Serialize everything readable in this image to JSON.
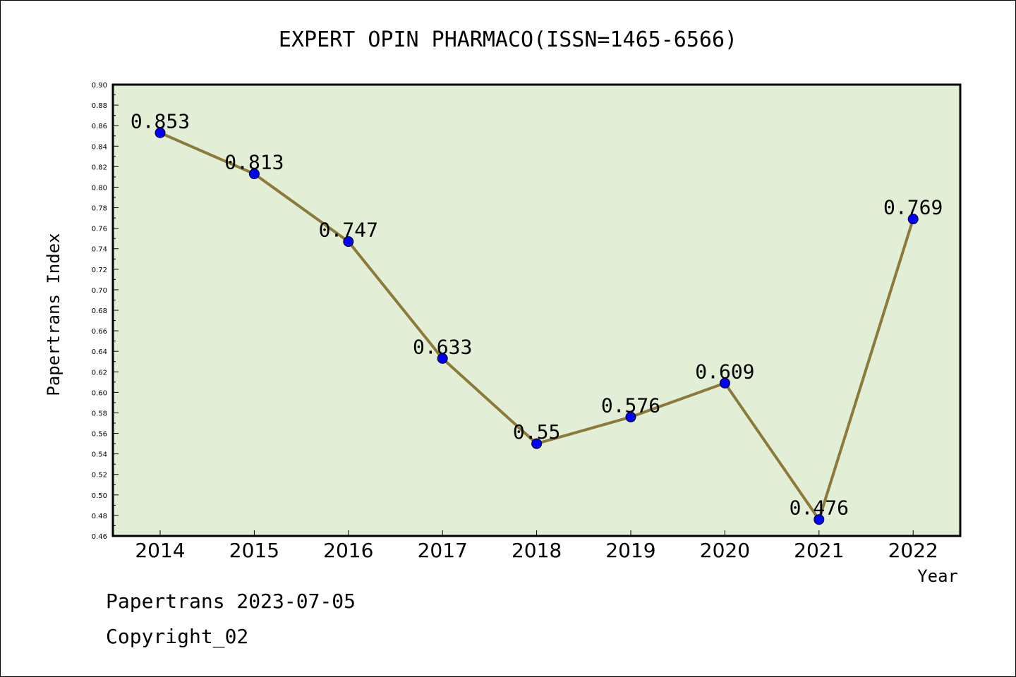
{
  "chart_data": {
    "type": "line",
    "title": "EXPERT OPIN PHARMACO(ISSN=1465-6566)",
    "xlabel": "Year",
    "ylabel": "Papertrans Index",
    "categories": [
      "2014",
      "2015",
      "2016",
      "2017",
      "2018",
      "2019",
      "2020",
      "2021",
      "2022"
    ],
    "values": [
      0.853,
      0.813,
      0.747,
      0.633,
      0.55,
      0.576,
      0.609,
      0.476,
      0.769
    ],
    "data_labels": [
      "0.853",
      "0.813",
      "0.747",
      "0.633",
      "0.55",
      "0.576",
      "0.609",
      "0.476",
      "0.769"
    ],
    "ylim": [
      0.46,
      0.9
    ],
    "yticks": [
      "0.46",
      "0.48",
      "0.50",
      "0.52",
      "0.54",
      "0.56",
      "0.58",
      "0.60",
      "0.62",
      "0.64",
      "0.66",
      "0.68",
      "0.70",
      "0.72",
      "0.74",
      "0.76",
      "0.78",
      "0.80",
      "0.82",
      "0.84",
      "0.86",
      "0.88",
      "0.90"
    ],
    "grid": false,
    "legend": "none",
    "colors": {
      "plot_background": "#e2efd6",
      "line": "#8b7a3a",
      "marker": "#0000ff"
    }
  },
  "footer": {
    "line1": "Papertrans 2023-07-05",
    "line2": "Copyright_02"
  }
}
